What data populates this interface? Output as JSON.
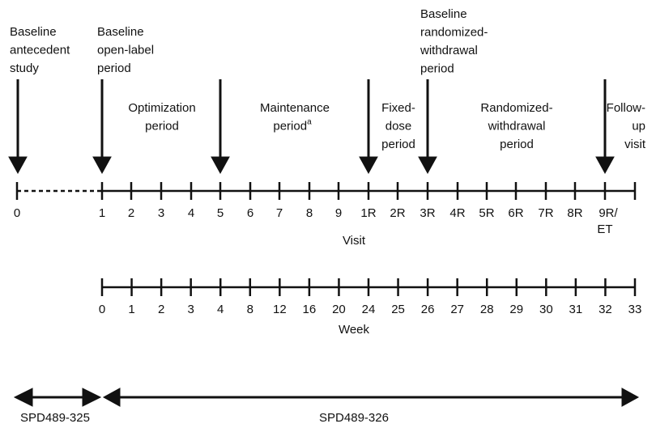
{
  "annotations": [
    {
      "lines": [
        "Baseline",
        "antecedent",
        "study"
      ]
    },
    {
      "lines": [
        "Baseline",
        "open-label",
        "period"
      ]
    },
    {
      "lines": [
        "Baseline",
        "randomized-",
        "withdrawal",
        "period"
      ]
    }
  ],
  "periods": [
    {
      "lines": [
        "Optimization",
        "period"
      ]
    },
    {
      "lines": [
        "Maintenance",
        "period"
      ],
      "superscript": "a"
    },
    {
      "lines": [
        "Fixed-",
        "dose",
        "period"
      ]
    },
    {
      "lines": [
        "Randomized-",
        "withdrawal",
        "period"
      ]
    },
    {
      "lines": [
        "Follow-",
        "up",
        "visit"
      ]
    }
  ],
  "visit_axis": {
    "label": "Visit",
    "ticks": [
      "0",
      "1",
      "2",
      "3",
      "4",
      "5",
      "6",
      "7",
      "8",
      "9",
      "1R",
      "2R",
      "3R",
      "4R",
      "5R",
      "6R",
      "7R",
      "8R",
      [
        "9R/",
        "ET"
      ]
    ]
  },
  "week_axis": {
    "label": "Week",
    "ticks": [
      "0",
      "1",
      "2",
      "3",
      "4",
      "8",
      "12",
      "16",
      "20",
      "24",
      "25",
      "26",
      "27",
      "28",
      "29",
      "30",
      "31",
      "32",
      "33"
    ]
  },
  "studies": [
    "SPD489-325",
    "SPD489-326"
  ]
}
